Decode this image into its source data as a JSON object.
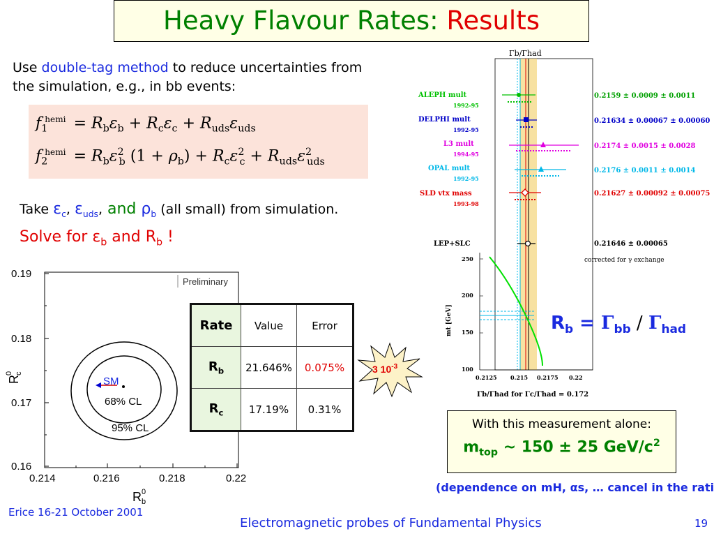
{
  "title": {
    "main": "Heavy Flavour Rates: ",
    "accent": "Results"
  },
  "intro": {
    "part1": "Use ",
    "highlight": "double-tag method",
    "part2": " to reduce uncertainties from the simulation, e.g., in bb events:"
  },
  "equations": {
    "f": "f",
    "hemi": "hemi",
    "eq": "=",
    "R": "R",
    "b": "b",
    "c": "c",
    "uds": "uds",
    "eps": "ε",
    "rho": "ρ",
    "one_plus": "(1 +",
    "close": ")",
    "plus": "+",
    "sub1": "1",
    "sub2": "2",
    "sq": "2"
  },
  "take": {
    "take_word": "Take ",
    "eps": "ε",
    "c": "c",
    "comma": ",",
    "uds": "uds",
    "and_word": " and ",
    "rho": "ρ",
    "b": "b",
    "rest": " (all small) from simulation."
  },
  "solve": {
    "solve_word": "Solve for ",
    "eps": "ε",
    "b": "b",
    "and_word": " and R",
    "bang": " !"
  },
  "plot_rc": {
    "y_ticks": [
      "0.19",
      "0.18",
      "0.17",
      "0.16"
    ],
    "x_ticks": [
      "0.214",
      "0.216",
      "0.218",
      "0.22"
    ],
    "x_label": "R",
    "x_label_sup": "0",
    "x_label_sub": "b",
    "y_label": "R",
    "y_label_sup": "0",
    "y_label_sub": "c",
    "preliminary": "Preliminary",
    "sm": "SM",
    "cl68": "68% CL",
    "cl95": "95% CL"
  },
  "table": {
    "headers": [
      "Rate",
      "Value",
      "Error"
    ],
    "rows": [
      {
        "label": "R",
        "sub": "b",
        "value": "21.646%",
        "error": "0.075%"
      },
      {
        "label": "R",
        "sub": "c",
        "value": "17.19%",
        "error": "0.31%"
      }
    ]
  },
  "star": {
    "text": "3 10",
    "sup": "-3"
  },
  "lep_plot": {
    "header": "Γb/Γhad",
    "experiments": [
      {
        "name": "ALEPH mult",
        "years": "1992-95",
        "value": "0.2159 ± 0.0009 ± 0.0011",
        "color": "#00c000"
      },
      {
        "name": "DELPHI mult",
        "years": "1992-95",
        "value": "0.21634 ± 0.00067 ± 0.00060",
        "color": "#0000c8"
      },
      {
        "name": "L3 mult",
        "years": "1994-95",
        "value": "0.2174 ± 0.0015 ± 0.0028",
        "color": "#e000e0"
      },
      {
        "name": "OPAL mult",
        "years": "1992-95",
        "value": "0.2176 ± 0.0011 ± 0.0014",
        "color": "#00b8e8"
      },
      {
        "name": "SLD vtx mass",
        "years": "1993-98",
        "value": "0.21627 ± 0.00092 ± 0.00075",
        "color": "#e00000"
      }
    ],
    "combined": {
      "name": "LEP+SLC",
      "value": "0.21646 ± 0.00065",
      "note": "corrected for γ exchange"
    },
    "mtop_label": "mt [GeV]",
    "y_ticks": [
      "250",
      "200",
      "150",
      "100"
    ],
    "x_ticks": [
      "0.2125",
      "0.215",
      "0.2175",
      "0.22"
    ],
    "x_label": "Γb/Γhad for Γc/Γhad = 0.172"
  },
  "rb_formula": {
    "r": "R",
    "b": "b",
    "eq": " = ",
    "gamma": "Γ",
    "bb": "bb",
    "slash": " / ",
    "had": "had"
  },
  "measurement": {
    "line1": "With this measurement alone:",
    "m": "m",
    "top": "top",
    "val": " ~ 150 ± 25 GeV/c",
    "sup": "2"
  },
  "dependence": "(dependence on mH, αs, … cancel in the ratio)",
  "footer": {
    "left": "Erice 16-21 October 2001",
    "center": "Electromagnetic probes of Fundamental Physics",
    "page": "19"
  },
  "colors": {
    "title_green": "#008000",
    "accent_red": "#e00000",
    "text_blue": "#1a2adf",
    "band_yellow": "#f5d98a"
  }
}
